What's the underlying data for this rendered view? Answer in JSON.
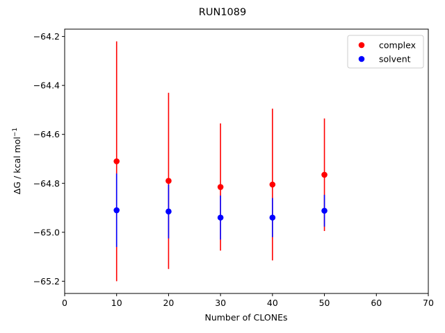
{
  "chart_data": {
    "type": "scatter",
    "title": "RUN1089",
    "xlabel": "Number of CLONEs",
    "ylabel": "ΔG / kcal mol",
    "ylabel_superscript": "−1",
    "xlim": [
      0,
      70
    ],
    "ylim": [
      -65.25,
      -64.17
    ],
    "xticks": [
      0,
      10,
      20,
      30,
      40,
      50,
      60,
      70
    ],
    "xtick_labels": [
      "0",
      "10",
      "20",
      "30",
      "40",
      "50",
      "60",
      "70"
    ],
    "yticks": [
      -65.2,
      -65.0,
      -64.8,
      -64.6,
      -64.4,
      -64.2
    ],
    "ytick_labels": [
      "−65.2",
      "−65.0",
      "−64.8",
      "−64.6",
      "−64.4",
      "−64.2"
    ],
    "grid": false,
    "legend_position": "top-right",
    "series": [
      {
        "name": "complex",
        "color": "#ff0000",
        "x": [
          10,
          20,
          30,
          40,
          50
        ],
        "y": [
          -64.71,
          -64.79,
          -64.815,
          -64.805,
          -64.765
        ],
        "yerr": [
          0.49,
          0.36,
          0.26,
          0.31,
          0.23
        ]
      },
      {
        "name": "solvent",
        "color": "#0000ff",
        "x": [
          10,
          20,
          30,
          40,
          50
        ],
        "y": [
          -64.91,
          -64.915,
          -64.94,
          -64.94,
          -64.912
        ],
        "yerr": [
          0.15,
          0.11,
          0.09,
          0.08,
          0.065
        ]
      }
    ]
  }
}
